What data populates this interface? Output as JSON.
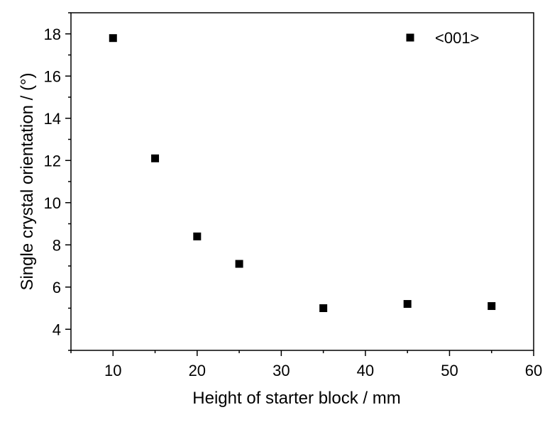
{
  "chart_data": {
    "type": "scatter",
    "title": "",
    "xlabel": "Height of starter block / mm",
    "ylabel": "Single crystal orientation / (°)",
    "xlim": [
      5,
      60
    ],
    "ylim": [
      3,
      19
    ],
    "xticks": [
      10,
      20,
      30,
      40,
      50,
      60
    ],
    "yticks": [
      4,
      6,
      8,
      10,
      12,
      14,
      16,
      18
    ],
    "grid": false,
    "legend_position": "top-right",
    "series": [
      {
        "name": "<001>",
        "marker": "square",
        "color": "#000000",
        "points": [
          {
            "x": 10,
            "y": 17.8
          },
          {
            "x": 15,
            "y": 12.1
          },
          {
            "x": 20,
            "y": 8.4
          },
          {
            "x": 25,
            "y": 7.1
          },
          {
            "x": 35,
            "y": 5.0
          },
          {
            "x": 45,
            "y": 5.2
          },
          {
            "x": 55,
            "y": 5.1
          }
        ]
      }
    ]
  }
}
